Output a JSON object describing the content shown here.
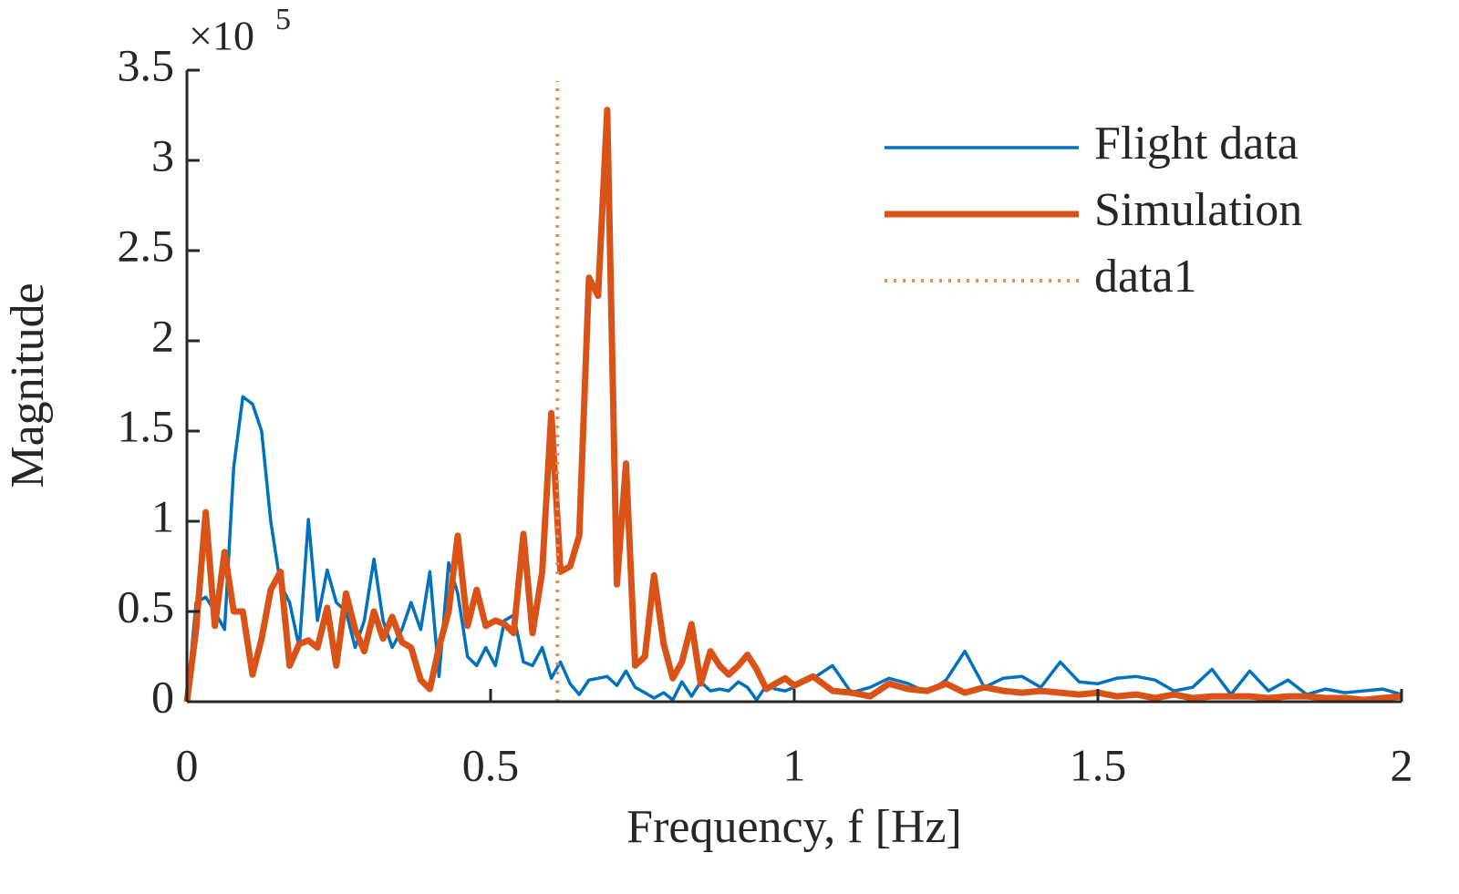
{
  "chart_data": {
    "type": "line",
    "xlabel": "Frequency, f [Hz]",
    "ylabel": "Magnitude",
    "y_multiplier": "×10",
    "y_multiplier_exponent": "5",
    "xlim": [
      0,
      2
    ],
    "ylim": [
      0,
      3.5
    ],
    "xticks": [
      0,
      0.5,
      1,
      1.5,
      2
    ],
    "yticks": [
      0,
      0.5,
      1,
      1.5,
      2,
      2.5,
      3,
      3.5
    ],
    "legend": "upper right",
    "x": [
      0,
      0.015,
      0.031,
      0.046,
      0.062,
      0.077,
      0.092,
      0.108,
      0.123,
      0.138,
      0.154,
      0.169,
      0.185,
      0.2,
      0.215,
      0.231,
      0.246,
      0.262,
      0.277,
      0.292,
      0.308,
      0.323,
      0.338,
      0.354,
      0.369,
      0.385,
      0.4,
      0.415,
      0.431,
      0.446,
      0.462,
      0.477,
      0.492,
      0.508,
      0.523,
      0.538,
      0.554,
      0.569,
      0.585,
      0.6,
      0.615,
      0.631,
      0.646,
      0.662,
      0.677,
      0.692,
      0.708,
      0.723,
      0.738,
      0.754,
      0.769,
      0.785,
      0.8,
      0.815,
      0.831,
      0.846,
      0.862,
      0.877,
      0.892,
      0.908,
      0.923,
      0.938,
      0.954,
      0.969,
      0.985,
      1.0,
      1.031,
      1.063,
      1.094,
      1.125,
      1.156,
      1.188,
      1.219,
      1.25,
      1.281,
      1.313,
      1.344,
      1.375,
      1.406,
      1.438,
      1.469,
      1.5,
      1.531,
      1.563,
      1.594,
      1.625,
      1.656,
      1.688,
      1.719,
      1.75,
      1.781,
      1.813,
      1.844,
      1.875,
      1.906,
      1.938,
      1.969,
      2.0
    ],
    "series": [
      {
        "name": "Flight data",
        "color": "#0072bd",
        "width": 3.5,
        "style": "solid",
        "values": [
          0,
          0.55,
          0.58,
          0.5,
          0.4,
          1.3,
          1.69,
          1.65,
          1.5,
          1.0,
          0.65,
          0.55,
          0.3,
          1.01,
          0.45,
          0.73,
          0.55,
          0.5,
          0.3,
          0.45,
          0.79,
          0.45,
          0.3,
          0.4,
          0.55,
          0.4,
          0.72,
          0.14,
          0.77,
          0.6,
          0.25,
          0.2,
          0.3,
          0.2,
          0.45,
          0.48,
          0.22,
          0.2,
          0.3,
          0.13,
          0.22,
          0.1,
          0.04,
          0.12,
          0.13,
          0.14,
          0.09,
          0.17,
          0.08,
          0.05,
          0.02,
          0.05,
          0.01,
          0.11,
          0.03,
          0.11,
          0.06,
          0.07,
          0.06,
          0.11,
          0.08,
          0.01,
          0.09,
          0.07,
          0.06,
          0.08,
          0.13,
          0.2,
          0.05,
          0.08,
          0.13,
          0.1,
          0.05,
          0.12,
          0.28,
          0.08,
          0.13,
          0.14,
          0.08,
          0.22,
          0.11,
          0.1,
          0.13,
          0.14,
          0.12,
          0.06,
          0.08,
          0.18,
          0.04,
          0.17,
          0.06,
          0.12,
          0.04,
          0.07,
          0.05,
          0.06,
          0.07,
          0.04
        ]
      },
      {
        "name": "Simulation",
        "color": "#d95319",
        "width": 7,
        "style": "solid",
        "values": [
          0,
          0.4,
          1.05,
          0.42,
          0.83,
          0.5,
          0.5,
          0.15,
          0.35,
          0.62,
          0.72,
          0.2,
          0.32,
          0.34,
          0.3,
          0.52,
          0.2,
          0.6,
          0.4,
          0.28,
          0.5,
          0.35,
          0.47,
          0.33,
          0.3,
          0.12,
          0.07,
          0.3,
          0.5,
          0.92,
          0.42,
          0.62,
          0.42,
          0.45,
          0.43,
          0.38,
          0.93,
          0.38,
          0.72,
          1.6,
          0.72,
          0.75,
          0.92,
          2.35,
          2.25,
          3.28,
          0.65,
          1.32,
          0.2,
          0.25,
          0.7,
          0.32,
          0.13,
          0.22,
          0.43,
          0.1,
          0.28,
          0.2,
          0.15,
          0.2,
          0.26,
          0.18,
          0.07,
          0.1,
          0.13,
          0.09,
          0.14,
          0.06,
          0.05,
          0.03,
          0.1,
          0.07,
          0.06,
          0.1,
          0.05,
          0.08,
          0.06,
          0.05,
          0.06,
          0.05,
          0.04,
          0.05,
          0.03,
          0.04,
          0.02,
          0.04,
          0.02,
          0.03,
          0.03,
          0.03,
          0.02,
          0.03,
          0.03,
          0.02,
          0.02,
          0.01,
          0.02,
          0.03
        ]
      },
      {
        "name": "data1",
        "color": "#e0905a",
        "width": 4,
        "style": "dotted",
        "x": [
          0.61,
          0.61
        ],
        "values": [
          0,
          3.44
        ]
      }
    ]
  }
}
